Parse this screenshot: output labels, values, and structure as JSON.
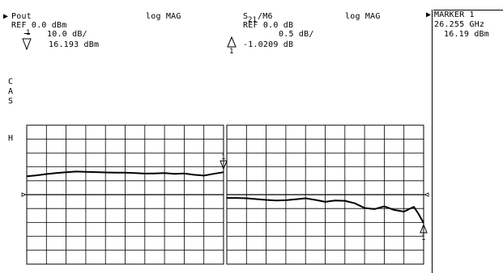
{
  "left_header": {
    "title": "Pout",
    "mode": "log MAG",
    "ref": "REF 0.0 dBm",
    "scale_channel": "1",
    "scale": "10.0 dB/",
    "marker_value": "16.193 dBm"
  },
  "right_header": {
    "title_main": "S",
    "title_sub": "21",
    "title_rest": "/M6",
    "mode": "log MAG",
    "ref": "REF 0.0 dB",
    "scale": "0.5 dB/",
    "marker_channel": "1",
    "marker_value": "-1.0209 dB"
  },
  "marker_panel": {
    "title": "MARKER 1",
    "frequency": "26.255 GHz",
    "value": "16.19 dBm"
  },
  "side_labels": {
    "c": "C",
    "a": "A",
    "s": "S",
    "h": "H"
  },
  "markers": {
    "left_label": "1",
    "right_label": "1"
  },
  "colors": {
    "trace": "#000000",
    "grid": "#000000",
    "background": "#ffffff"
  },
  "chart_data": [
    {
      "type": "line",
      "title": "Pout",
      "ylabel": "log MAG",
      "reference": 0.0,
      "scale_per_div": 10.0,
      "divisions_x": 10,
      "divisions_y": 10,
      "reference_division": 5,
      "grid": true,
      "series": [
        {
          "x": [
            0,
            0.5,
            1,
            1.5,
            2,
            2.5,
            3,
            3.5,
            4,
            4.5,
            5,
            5.5,
            6,
            6.5,
            7,
            7.5,
            8,
            8.5,
            9,
            9.5,
            10
          ],
          "values": [
            13.2,
            13.9,
            14.8,
            15.5,
            16.1,
            16.6,
            16.4,
            16.2,
            16.0,
            15.8,
            15.9,
            15.6,
            15.2,
            15.3,
            15.5,
            15.0,
            15.3,
            14.3,
            13.7,
            15.0,
            16.19
          ]
        }
      ],
      "marker": {
        "x": 10,
        "value": 16.193
      }
    },
    {
      "type": "line",
      "title": "S21/M6",
      "ylabel": "log MAG",
      "reference": 0.0,
      "scale_per_div": 0.5,
      "divisions_x": 10,
      "divisions_y": 10,
      "reference_division": 5,
      "grid": true,
      "series": [
        {
          "x": [
            0,
            0.5,
            1,
            1.5,
            2,
            2.5,
            3,
            3.5,
            4,
            4.5,
            5,
            5.5,
            6,
            6.5,
            7,
            7.5,
            8,
            8.5,
            9,
            9.5,
            9.75,
            10
          ],
          "values": [
            -0.12,
            -0.12,
            -0.13,
            -0.16,
            -0.19,
            -0.21,
            -0.2,
            -0.17,
            -0.13,
            -0.19,
            -0.26,
            -0.21,
            -0.22,
            -0.31,
            -0.48,
            -0.52,
            -0.42,
            -0.55,
            -0.61,
            -0.44,
            -0.7,
            -1.0209
          ]
        }
      ],
      "marker": {
        "x": 10,
        "value": -1.0209
      }
    }
  ]
}
